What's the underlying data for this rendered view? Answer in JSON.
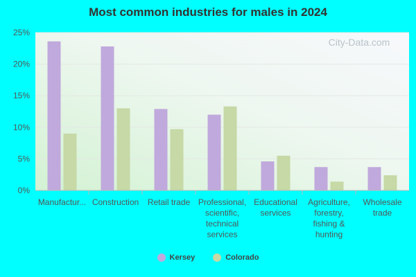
{
  "chart_data": {
    "type": "bar",
    "title": "Most common industries for males in 2024",
    "categories": [
      "Manufactur...",
      "Construction",
      "Retail trade",
      "Professional, scientific, technical services",
      "Educational services",
      "Agriculture, forestry, fishing & hunting",
      "Wholesale trade"
    ],
    "category_lines": [
      [
        "Manufactur..."
      ],
      [
        "Construction"
      ],
      [
        "Retail trade"
      ],
      [
        "Professional,",
        "scientific,",
        "technical",
        "services"
      ],
      [
        "Educational",
        "services"
      ],
      [
        "Agriculture,",
        "forestry,",
        "fishing &",
        "hunting"
      ],
      [
        "Wholesale",
        "trade"
      ]
    ],
    "series": [
      {
        "name": "Kersey",
        "color": "#c0a9dc",
        "values": [
          23.6,
          22.8,
          12.9,
          12.0,
          4.6,
          3.7,
          3.7
        ]
      },
      {
        "name": "Colorado",
        "color": "#c6d9a6",
        "values": [
          9.0,
          13.0,
          9.7,
          13.3,
          5.5,
          1.4,
          2.4
        ]
      }
    ],
    "ylim": [
      0,
      25
    ],
    "yticks": [
      0,
      5,
      10,
      15,
      20,
      25
    ],
    "ytick_labels": [
      "0%",
      "5%",
      "10%",
      "15%",
      "20%",
      "25%"
    ],
    "grid": true,
    "legend_position": "bottom",
    "watermark": "City-Data.com"
  }
}
